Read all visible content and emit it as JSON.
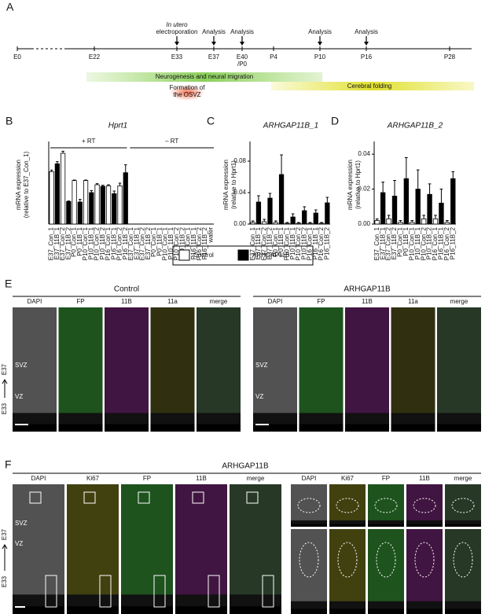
{
  "panel_a": {
    "letter": "A",
    "timepoints": [
      "E0",
      "E22",
      "E33",
      "E37",
      "E40 /P0",
      "P4",
      "P10",
      "P16",
      "P28"
    ],
    "events": [
      {
        "lines": [
          "In utero",
          "electroporation"
        ]
      },
      {
        "lines": [
          "Analysis"
        ]
      },
      {
        "lines": [
          "Analysis"
        ]
      },
      {
        "lines": [
          "Analysis"
        ]
      },
      {
        "lines": [
          "Analysis"
        ]
      }
    ],
    "periods": [
      "Neurogenesis and neural migration",
      "Cerebral folding"
    ],
    "osvz": [
      "Formation of",
      "the OSVZ"
    ]
  },
  "chart_data": [
    {
      "type": "bar",
      "letter": "B",
      "title": "Hprt1",
      "ylabel": [
        "mRNA expression",
        "(relative to E37_Con_1)"
      ],
      "groups": [
        "+ RT",
        "– RT"
      ],
      "categories": [
        "E37_Con_1",
        "E37_11B_1",
        "E37_Con_2",
        "E37_11B_2",
        "P0_Con_1",
        "P0_11B_1",
        "P10_Con_1",
        "P10_11B_1",
        "P10_Con_2",
        "P10_11B_2",
        "P16_Con_1",
        "P16_11B_1",
        "P16_Con_2",
        "P16_11B_2",
        "E37_Con_1",
        "E37_11B_1",
        "E37_Con_2",
        "E37_11B_2",
        "P0_Con_1",
        "P0_11B_1",
        "P10_Con_1",
        "P10_11B_1",
        "P10_Con_2",
        "P10_11B_2",
        "P16_Con_1",
        "P16_11B_1",
        "P16_Con_2",
        "P16_11B_2",
        "water"
      ],
      "ylim": [
        0,
        1.5
      ],
      "series": [
        {
          "name": "Control",
          "color": "#ffffff",
          "values": [
            1.0,
            null,
            1.35,
            null,
            0.83,
            null,
            0.83,
            null,
            0.75,
            null,
            0.73,
            null,
            0.73,
            null,
            0,
            null,
            0,
            null,
            0,
            null,
            0,
            null,
            0,
            null,
            0,
            null,
            0,
            null,
            null
          ],
          "errors": [
            0.03,
            null,
            0.04,
            null,
            0.01,
            null,
            0.01,
            null,
            0.02,
            null,
            0.02,
            null,
            0.05,
            null,
            null,
            null,
            null,
            null,
            null,
            null,
            null,
            null,
            null,
            null,
            null,
            null,
            null,
            null,
            null
          ]
        },
        {
          "name": "ARHGAP11B",
          "color": "#000000",
          "values": [
            null,
            1.15,
            null,
            0.43,
            null,
            0.42,
            null,
            0.6,
            null,
            0.72,
            null,
            0.58,
            null,
            0.98,
            null,
            0,
            null,
            0,
            null,
            0,
            null,
            0,
            null,
            0,
            null,
            0,
            null,
            0,
            null
          ],
          "errors": [
            null,
            0.04,
            null,
            0.01,
            null,
            0.05,
            null,
            0.04,
            null,
            0.02,
            null,
            0.05,
            null,
            0.15,
            null,
            null,
            null,
            null,
            null,
            null,
            null,
            null,
            null,
            null,
            null,
            null,
            null,
            null,
            null
          ]
        }
      ]
    },
    {
      "type": "bar",
      "letter": "C",
      "title": "ARHGAP11B_1",
      "ylabel": [
        "mRNA expression",
        "(relative to Hprt1)"
      ],
      "categories": [
        "E37_Con_1",
        "E37_11B_1",
        "E37_Con_2",
        "E37_11B_2",
        "P0_Con_1",
        "P0_11B_1",
        "P10_Con_1",
        "P10_11B_1",
        "P10_Con_2",
        "P10_11B_2",
        "P16_Con_1",
        "P16_11B_1",
        "P16_Con_2",
        "P16_11B_2"
      ],
      "ylim": [
        0,
        0.1
      ],
      "yticks": [
        {
          "value": 0,
          "label": "0.00"
        },
        {
          "value": 0.04,
          "label": "0.04"
        },
        {
          "value": 0.08,
          "label": "0.08"
        }
      ],
      "series": [
        {
          "name": "Control",
          "color": "#ffffff",
          "values": [
            0.002,
            null,
            0.003,
            null,
            0.002,
            null,
            0.001,
            null,
            0.001,
            null,
            0.001,
            null,
            0.001,
            null
          ],
          "errors": [
            0.002,
            null,
            0.003,
            null,
            0.002,
            null,
            0.001,
            null,
            0.001,
            null,
            0.001,
            null,
            0.001,
            null
          ]
        },
        {
          "name": "ARHGAP11B",
          "color": "#000000",
          "values": [
            null,
            0.028,
            null,
            0.033,
            null,
            0.063,
            null,
            0.009,
            null,
            0.017,
            null,
            0.014,
            null,
            0.027
          ],
          "errors": [
            null,
            0.008,
            null,
            0.006,
            null,
            0.025,
            null,
            0.004,
            null,
            0.005,
            null,
            0.004,
            null,
            0.007
          ]
        }
      ]
    },
    {
      "type": "bar",
      "letter": "D",
      "title": "ARHGAP11B_2",
      "ylabel": [
        "mRNA expression",
        "(relative to Hprt1)"
      ],
      "categories": [
        "E37_Con_1",
        "E37_11B_1",
        "E37_Con_2",
        "E37_11B_2",
        "P0_Con_1",
        "P0_11B_1",
        "P10_Con_1",
        "P10_11B_1",
        "P10_Con_2",
        "P10_11B_2",
        "P16_Con_1",
        "P16_11B_1",
        "P16_Con_2",
        "P16_11B_2"
      ],
      "ylim": [
        0,
        0.045
      ],
      "yticks": [
        {
          "value": 0,
          "label": "0.00"
        },
        {
          "value": 0.02,
          "label": "0.02"
        },
        {
          "value": 0.04,
          "label": "0.04"
        }
      ],
      "series": [
        {
          "name": "Control",
          "color": "#ffffff",
          "values": [
            0.002,
            null,
            0.003,
            null,
            0.001,
            null,
            0.001,
            null,
            0.003,
            null,
            0.003,
            null,
            0.001,
            null
          ],
          "errors": [
            0.001,
            null,
            0.002,
            null,
            0.001,
            null,
            0.001,
            null,
            0.002,
            null,
            0.002,
            null,
            0.001,
            null
          ]
        },
        {
          "name": "ARHGAP11B",
          "color": "#000000",
          "values": [
            null,
            0.018,
            null,
            0.016,
            null,
            0.026,
            null,
            0.02,
            null,
            0.017,
            null,
            0.012,
            null,
            0.026
          ],
          "errors": [
            null,
            0.006,
            null,
            0.009,
            null,
            0.012,
            null,
            0.011,
            null,
            0.006,
            null,
            0.008,
            null,
            0.004
          ]
        }
      ]
    }
  ],
  "panel_e": {
    "letter": "E",
    "conditions": [
      "Control",
      "ARHGAP11B"
    ],
    "channels": [
      "DAPI",
      "FP",
      "11B",
      "11a",
      "merge"
    ],
    "zones": [
      "SVZ",
      "VZ"
    ],
    "axis": [
      "E33",
      "E37"
    ]
  },
  "panel_f": {
    "letter": "F",
    "condition": "ARHGAP11B",
    "channels": [
      "DAPI",
      "Ki67",
      "FP",
      "11B",
      "merge"
    ],
    "zones": [
      "SVZ",
      "VZ"
    ],
    "axis": [
      "E33",
      "E37"
    ]
  }
}
